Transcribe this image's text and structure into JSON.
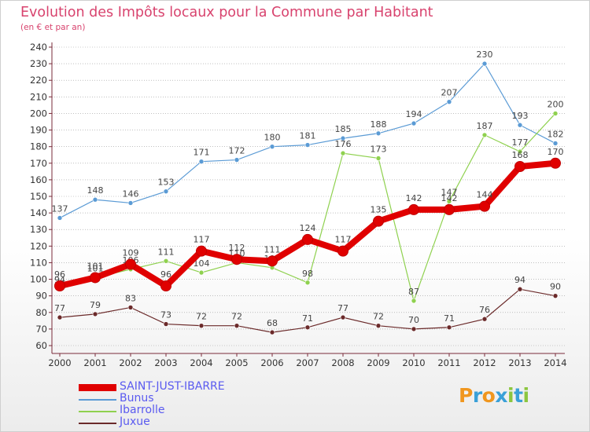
{
  "header": {
    "title": "Evolution des Impôts locaux pour la Commune par Habitant",
    "subtitle": "(en € et par an)"
  },
  "logo": {
    "text": "Proxiti"
  },
  "colors": {
    "axis": "#7a2b3a",
    "grid": "#9a9a9a",
    "tick_text": "#333333",
    "label_text": "#444444"
  },
  "chart_data": {
    "type": "line",
    "x": [
      "2000",
      "2001",
      "2002",
      "2003",
      "2004",
      "2005",
      "2006",
      "2007",
      "2008",
      "2009",
      "2010",
      "2011",
      "2012",
      "2013",
      "2014"
    ],
    "ylim": [
      60,
      240
    ],
    "yticks": [
      60,
      70,
      80,
      90,
      100,
      110,
      120,
      130,
      140,
      150,
      160,
      170,
      180,
      190,
      200,
      210,
      220,
      230,
      240
    ],
    "grid": "horizontal dotted",
    "legend_position": "bottom-left",
    "series": [
      {
        "name": "Juxue",
        "color": "#6b2a2a",
        "values": [
          77,
          79,
          83,
          73,
          72,
          72,
          68,
          71,
          77,
          72,
          70,
          71,
          76,
          94,
          90
        ]
      },
      {
        "name": "Bunus",
        "color": "#5b9bd5",
        "values": [
          137,
          148,
          146,
          153,
          171,
          172,
          180,
          181,
          185,
          188,
          194,
          207,
          230,
          193,
          182
        ]
      },
      {
        "name": "Ibarrolle",
        "color": "#8fd14f",
        "values": [
          94,
          101,
          106,
          111,
          104,
          110,
          107,
          98,
          176,
          173,
          87,
          147,
          187,
          177,
          200
        ]
      },
      {
        "name": "SAINT-JUST-IBARRE",
        "color": "#e00000",
        "values": [
          96,
          101,
          109,
          96,
          117,
          112,
          111,
          124,
          117,
          135,
          142,
          142,
          144,
          168,
          170
        ]
      }
    ],
    "legend_order": [
      "SAINT-JUST-IBARRE",
      "Bunus",
      "Ibarrolle",
      "Juxue"
    ]
  }
}
